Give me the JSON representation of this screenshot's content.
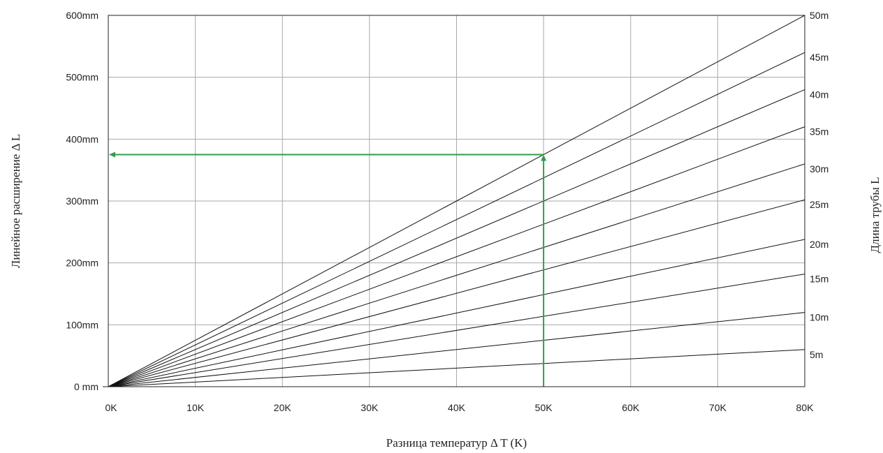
{
  "chart_data": {
    "type": "line",
    "title": "",
    "xlabel": "Разница температур Δ T (K)",
    "ylabel": "Линейное расширение Δ L",
    "y2label": "Длина трубы L",
    "xlim": [
      0,
      80
    ],
    "ylim": [
      0,
      600
    ],
    "x_ticks": [
      0,
      10,
      20,
      30,
      40,
      50,
      60,
      70,
      80
    ],
    "x_tick_labels": [
      "0K",
      "10K",
      "20K",
      "30K",
      "40K",
      "50K",
      "60K",
      "70K",
      "80K"
    ],
    "y_ticks": [
      0,
      100,
      200,
      300,
      400,
      500,
      600
    ],
    "y_tick_labels": [
      "0 mm",
      "100mm",
      "200mm",
      "300mm",
      "400mm",
      "500mm",
      "600mm"
    ],
    "grid": true,
    "series": [
      {
        "name": "5m",
        "x": [
          0,
          80
        ],
        "y": [
          0,
          60
        ]
      },
      {
        "name": "10m",
        "x": [
          0,
          80
        ],
        "y": [
          0,
          120
        ]
      },
      {
        "name": "15m",
        "x": [
          0,
          80
        ],
        "y": [
          0,
          182
        ]
      },
      {
        "name": "20m",
        "x": [
          0,
          80
        ],
        "y": [
          0,
          238
        ]
      },
      {
        "name": "25m",
        "x": [
          0,
          80
        ],
        "y": [
          0,
          302
        ]
      },
      {
        "name": "30m",
        "x": [
          0,
          80
        ],
        "y": [
          0,
          360
        ]
      },
      {
        "name": "35m",
        "x": [
          0,
          80
        ],
        "y": [
          0,
          420
        ]
      },
      {
        "name": "40m",
        "x": [
          0,
          80
        ],
        "y": [
          0,
          480
        ]
      },
      {
        "name": "45m",
        "x": [
          0,
          80
        ],
        "y": [
          0,
          540
        ]
      },
      {
        "name": "50m",
        "x": [
          0,
          80
        ],
        "y": [
          0,
          600
        ]
      }
    ],
    "example": {
      "x": 50,
      "y": 375,
      "color": "#2e9e48"
    },
    "line_color": "#111111",
    "grid_color": "#a9a9a9"
  }
}
